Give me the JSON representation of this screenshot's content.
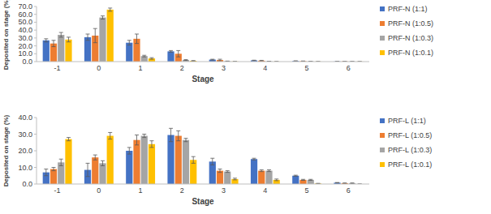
{
  "chart_data": [
    {
      "type": "bar",
      "x_label": "Stage",
      "y_label": "Deposited on stage (%)",
      "categories": [
        "-1",
        "0",
        "1",
        "2",
        "3",
        "4",
        "5",
        "6"
      ],
      "ylim": [
        0,
        70
      ],
      "yticks": [
        {
          "value": 0,
          "label": "0.0"
        },
        {
          "value": 10,
          "label": "10.0"
        },
        {
          "value": 20,
          "label": "20.0"
        },
        {
          "value": 30,
          "label": "30.0"
        },
        {
          "value": 40,
          "label": "40.0"
        },
        {
          "value": 50,
          "label": "50.0"
        },
        {
          "value": 60,
          "label": "60.0"
        },
        {
          "value": 70,
          "label": "70.0"
        }
      ],
      "grid": false,
      "legend": "right",
      "series": [
        {
          "name": "PRF-N (1:1)",
          "color": "#4472c4",
          "values": [
            27,
            31,
            24,
            13,
            2.5,
            1.5,
            0.8,
            0.3
          ],
          "errors": [
            2,
            4,
            3,
            1,
            0.5,
            0.3,
            0.2,
            0.1
          ]
        },
        {
          "name": "PRF-N (1:0.5)",
          "color": "#ed7d31",
          "values": [
            23,
            33,
            29,
            10,
            2,
            1.2,
            0.6,
            0.3
          ],
          "errors": [
            4,
            9,
            6,
            4,
            1,
            0.4,
            0.2,
            0.1
          ]
        },
        {
          "name": "PRF-N (1:0.3)",
          "color": "#a5a5a5",
          "values": [
            34,
            56,
            7,
            2,
            0.5,
            0.4,
            0.3,
            0.2
          ],
          "errors": [
            3,
            2,
            1,
            0.5,
            0.2,
            0.1,
            0.1,
            0.1
          ]
        },
        {
          "name": "PRF-N (1:0.1)",
          "color": "#ffc000",
          "values": [
            28,
            66,
            4,
            1,
            0.2,
            0.1,
            0.1,
            0.1
          ],
          "errors": [
            3,
            2,
            1,
            0.3,
            0.1,
            0.1,
            0.1,
            0.1
          ]
        }
      ]
    },
    {
      "type": "bar",
      "x_label": "Stage",
      "y_label": "Deposited on stage (%)",
      "categories": [
        "-1",
        "0",
        "1",
        "2",
        "3",
        "4",
        "5",
        "6"
      ],
      "ylim": [
        0,
        40
      ],
      "yticks": [
        {
          "value": 0,
          "label": "0.0"
        },
        {
          "value": 10,
          "label": "10.0"
        },
        {
          "value": 20,
          "label": "20.0"
        },
        {
          "value": 30,
          "label": "30.0"
        },
        {
          "value": 40,
          "label": "40.0"
        }
      ],
      "grid": false,
      "legend": "right",
      "series": [
        {
          "name": "PRF-L (1:1)",
          "color": "#4472c4",
          "values": [
            7,
            8.5,
            20,
            29.5,
            13.5,
            15,
            5,
            0.8
          ],
          "errors": [
            2,
            4,
            2,
            4,
            2,
            0.5,
            0.3,
            0.1
          ]
        },
        {
          "name": "PRF-L (1:0.5)",
          "color": "#ed7d31",
          "values": [
            9,
            16,
            26.5,
            29,
            8,
            8,
            2.5,
            0.5
          ],
          "errors": [
            1,
            1.5,
            3,
            3,
            1,
            0.5,
            0.3,
            0.1
          ]
        },
        {
          "name": "PRF-L (1:0.3)",
          "color": "#a5a5a5",
          "values": [
            13,
            12.5,
            29,
            26.5,
            7.5,
            8,
            2.5,
            0.5
          ],
          "errors": [
            2,
            1.5,
            1,
            1,
            0.5,
            0.5,
            0.3,
            0.1
          ]
        },
        {
          "name": "PRF-L (1:0.1)",
          "color": "#ffc000",
          "values": [
            27,
            29,
            24,
            14.5,
            3,
            2.5,
            0.3,
            0
          ],
          "errors": [
            1,
            2,
            2,
            2,
            0.5,
            0.5,
            0.1,
            0.1
          ]
        }
      ]
    }
  ]
}
